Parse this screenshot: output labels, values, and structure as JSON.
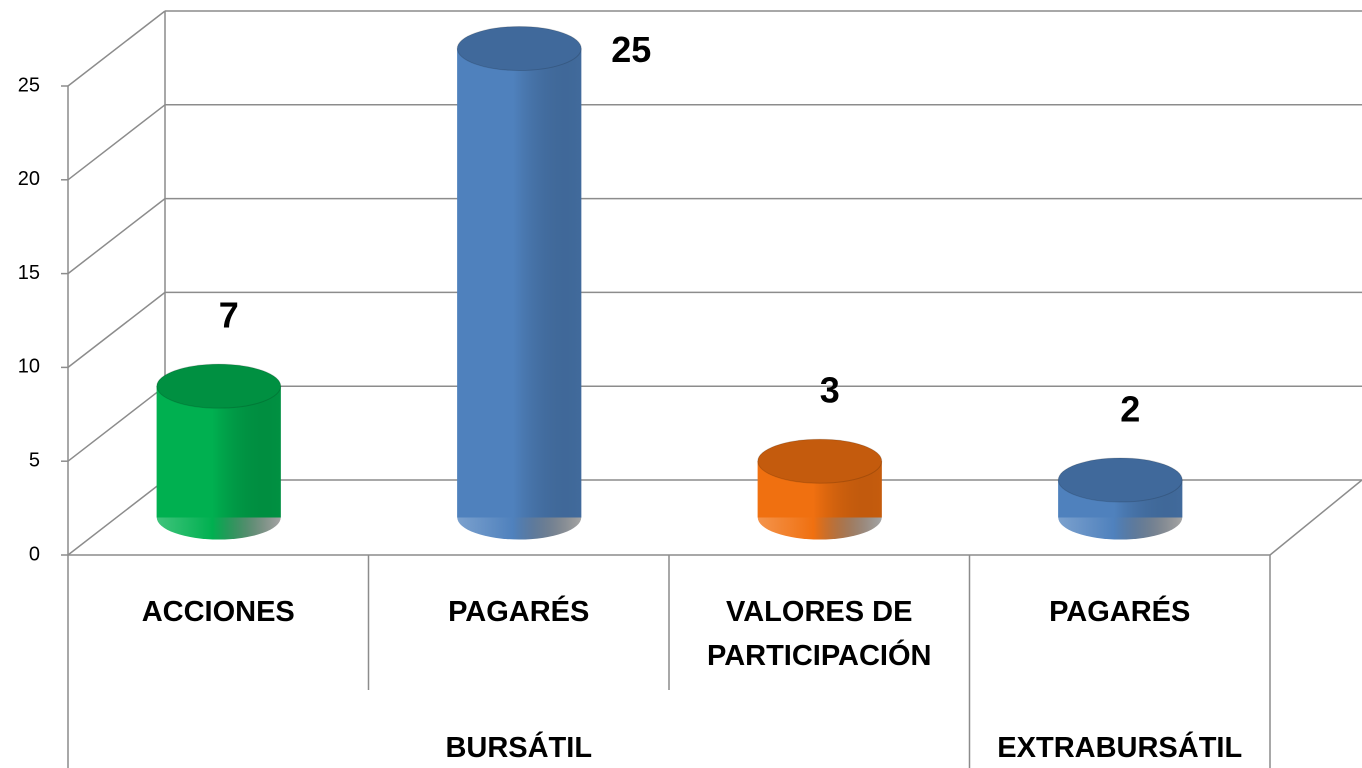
{
  "chart_data": {
    "type": "bar3d",
    "categories": [
      "ACCIONES",
      "PAGARÉS",
      "VALORES DE PARTICIPACIÓN",
      "PAGARÉS"
    ],
    "groups": [
      {
        "name": "BURSÁTIL",
        "count": 3
      },
      {
        "name": "EXTRABURSÁTIL",
        "count": 1
      }
    ],
    "values": [
      7,
      25,
      3,
      2
    ],
    "colors": [
      "#00b050",
      "#4f81bd",
      "#f07010",
      "#4f81bd"
    ],
    "ylim": [
      0,
      25
    ],
    "yticks": [
      0,
      5,
      10,
      15,
      20,
      25
    ],
    "grid": true
  }
}
